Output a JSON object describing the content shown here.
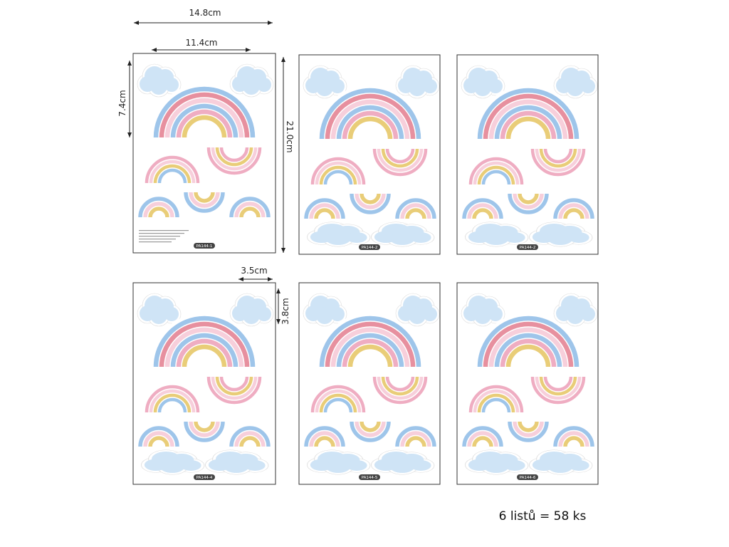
{
  "dimensions": {
    "sheet_width": "14.8cm",
    "rainbow_width": "11.4cm",
    "rainbow_height": "7.4cm",
    "sheet_height": "21.0cm",
    "small_width": "3.5cm",
    "small_height": "3.8cm"
  },
  "sheets": [
    {
      "label": "PA144-1"
    },
    {
      "label": "PA144-2"
    },
    {
      "label": "PA144-2"
    },
    {
      "label": "PA144-4"
    },
    {
      "label": "PA144-5"
    },
    {
      "label": "PA144-6"
    }
  ],
  "caption": "6 listů = 58 ks"
}
